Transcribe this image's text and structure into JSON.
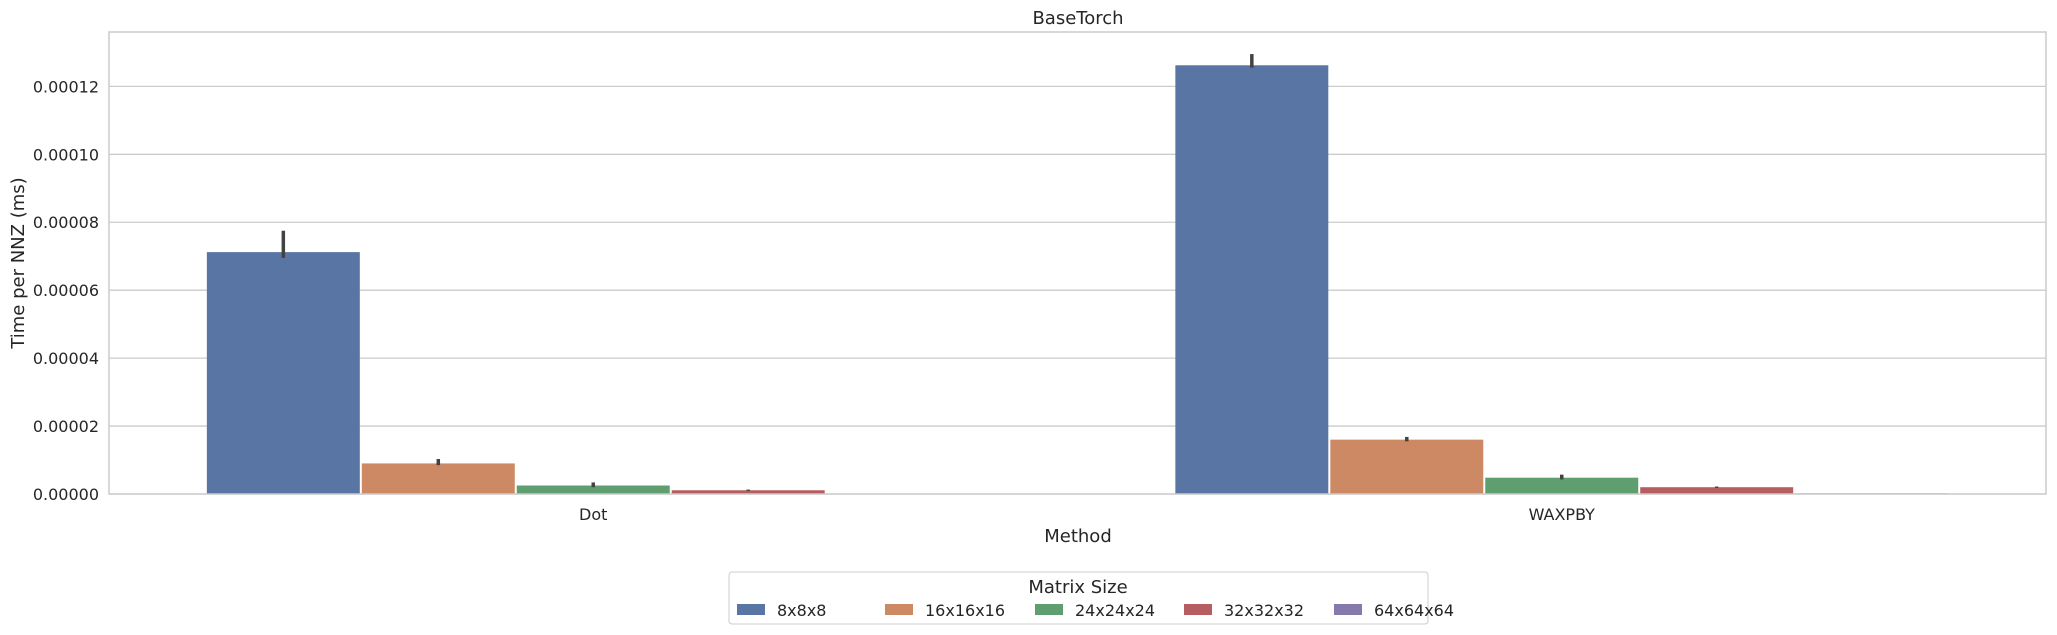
{
  "chart_data": {
    "type": "bar",
    "title": "BaseTorch",
    "xlabel": "Method",
    "ylabel": "Time per NNZ (ms)",
    "categories": [
      "Dot",
      "WAXPBY"
    ],
    "ylim": [
      0,
      0.000136
    ],
    "yticks": [
      "0.00000",
      "0.00002",
      "0.00004",
      "0.00006",
      "0.00008",
      "0.00010",
      "0.00012"
    ],
    "ytick_values": [
      0,
      2e-05,
      4e-05,
      6e-05,
      8e-05,
      0.0001,
      0.00012
    ],
    "grid": true,
    "legend": {
      "title": "Matrix Size",
      "placement": "bottom-center"
    },
    "series": [
      {
        "name": "8x8x8",
        "color": "#5875a4",
        "values": [
          7.12e-05,
          0.0001262
        ],
        "err_high": [
          7.75e-05,
          0.0001295
        ],
        "err_low": [
          6.95e-05,
          0.0001255
        ]
      },
      {
        "name": "16x16x16",
        "color": "#cc8963",
        "values": [
          9e-06,
          1.6e-05
        ],
        "err_high": [
          1.03e-05,
          1.68e-05
        ],
        "err_low": [
          8.5e-06,
          1.55e-05
        ]
      },
      {
        "name": "24x24x24",
        "color": "#5f9e6e",
        "values": [
          2.5e-06,
          4.8e-06
        ],
        "err_high": [
          3.4e-06,
          5.7e-06
        ],
        "err_low": [
          2e-06,
          4.3e-06
        ]
      },
      {
        "name": "32x32x32",
        "color": "#b55d60",
        "values": [
          1.1e-06,
          2e-06
        ],
        "err_high": [
          1.3e-06,
          2.2e-06
        ],
        "err_low": [
          9e-07,
          1.8e-06
        ]
      },
      {
        "name": "64x64x64",
        "color": "#857aab",
        "values": [
          1e-07,
          2e-07
        ],
        "err_high": [
          1e-07,
          2e-07
        ],
        "err_low": [
          1e-07,
          2e-07
        ]
      }
    ]
  }
}
